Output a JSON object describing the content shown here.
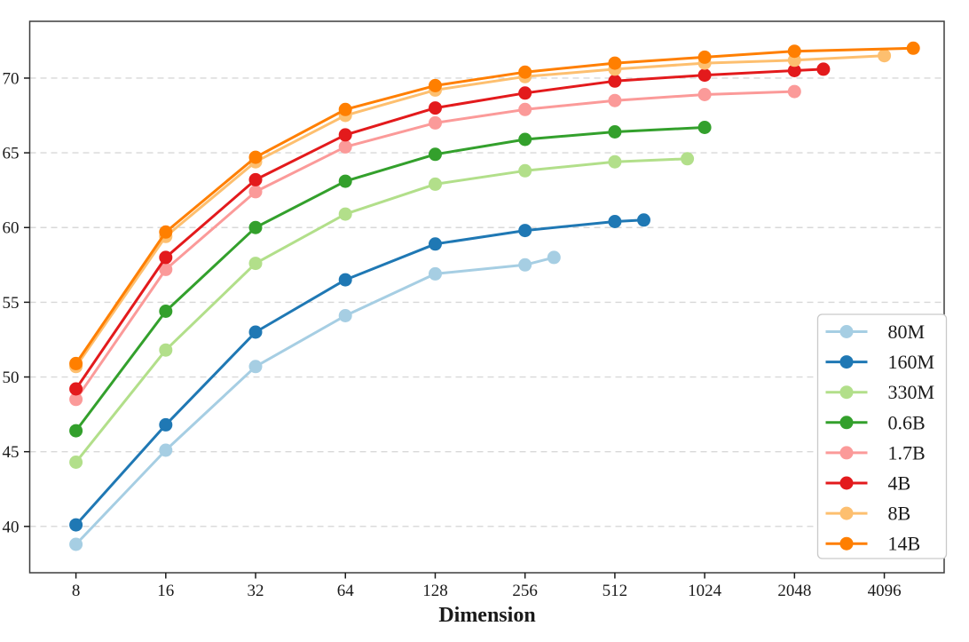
{
  "chart_data": {
    "type": "line",
    "title": "",
    "xlabel": "Dimension",
    "ylabel": "",
    "x_scale": "log2",
    "grid": "horizontal-dashed",
    "legend_position": "lower-right",
    "x_ticks": [
      8,
      16,
      32,
      64,
      128,
      256,
      512,
      1024,
      2048,
      4096
    ],
    "y_ticks": [
      40,
      45,
      50,
      55,
      60,
      65,
      70
    ],
    "xlim": [
      5.6,
      6500
    ],
    "ylim": [
      36.9,
      73.8
    ],
    "series": [
      {
        "name": "80M",
        "color": "#a6cee3",
        "points": [
          [
            8,
            38.8
          ],
          [
            16,
            45.1
          ],
          [
            32,
            50.7
          ],
          [
            64,
            54.1
          ],
          [
            128,
            56.9
          ],
          [
            256,
            57.5
          ],
          [
            320,
            58.0
          ]
        ]
      },
      {
        "name": "160M",
        "color": "#1f78b4",
        "points": [
          [
            8,
            40.1
          ],
          [
            16,
            46.8
          ],
          [
            32,
            53.0
          ],
          [
            64,
            56.5
          ],
          [
            128,
            58.9
          ],
          [
            256,
            59.8
          ],
          [
            512,
            60.4
          ],
          [
            640,
            60.5
          ]
        ]
      },
      {
        "name": "330M",
        "color": "#b2df8a",
        "points": [
          [
            8,
            44.3
          ],
          [
            16,
            51.8
          ],
          [
            32,
            57.6
          ],
          [
            64,
            60.9
          ],
          [
            128,
            62.9
          ],
          [
            256,
            63.8
          ],
          [
            512,
            64.4
          ],
          [
            896,
            64.6
          ]
        ]
      },
      {
        "name": "0.6B",
        "color": "#33a02c",
        "points": [
          [
            8,
            46.4
          ],
          [
            16,
            54.4
          ],
          [
            32,
            60.0
          ],
          [
            64,
            63.1
          ],
          [
            128,
            64.9
          ],
          [
            256,
            65.9
          ],
          [
            512,
            66.4
          ],
          [
            1024,
            66.7
          ]
        ]
      },
      {
        "name": "1.7B",
        "color": "#fb9a99",
        "points": [
          [
            8,
            48.5
          ],
          [
            16,
            57.2
          ],
          [
            32,
            62.4
          ],
          [
            64,
            65.4
          ],
          [
            128,
            67.0
          ],
          [
            256,
            67.9
          ],
          [
            512,
            68.5
          ],
          [
            1024,
            68.9
          ],
          [
            2048,
            69.1
          ]
        ]
      },
      {
        "name": "4B",
        "color": "#e31a1c",
        "points": [
          [
            8,
            49.2
          ],
          [
            16,
            58.0
          ],
          [
            32,
            63.2
          ],
          [
            64,
            66.2
          ],
          [
            128,
            68.0
          ],
          [
            256,
            69.0
          ],
          [
            512,
            69.8
          ],
          [
            1024,
            70.2
          ],
          [
            2048,
            70.5
          ],
          [
            2560,
            70.6
          ]
        ]
      },
      {
        "name": "8B",
        "color": "#fdbf6f",
        "points": [
          [
            8,
            50.7
          ],
          [
            16,
            59.4
          ],
          [
            32,
            64.4
          ],
          [
            64,
            67.5
          ],
          [
            128,
            69.2
          ],
          [
            256,
            70.1
          ],
          [
            512,
            70.6
          ],
          [
            1024,
            71.0
          ],
          [
            2048,
            71.2
          ],
          [
            4096,
            71.5
          ]
        ]
      },
      {
        "name": "14B",
        "color": "#ff7f00",
        "points": [
          [
            8,
            50.9
          ],
          [
            16,
            59.7
          ],
          [
            32,
            64.7
          ],
          [
            64,
            67.9
          ],
          [
            128,
            69.5
          ],
          [
            256,
            70.4
          ],
          [
            512,
            71.0
          ],
          [
            1024,
            71.4
          ],
          [
            2048,
            71.8
          ],
          [
            5120,
            72.0
          ]
        ]
      }
    ]
  }
}
